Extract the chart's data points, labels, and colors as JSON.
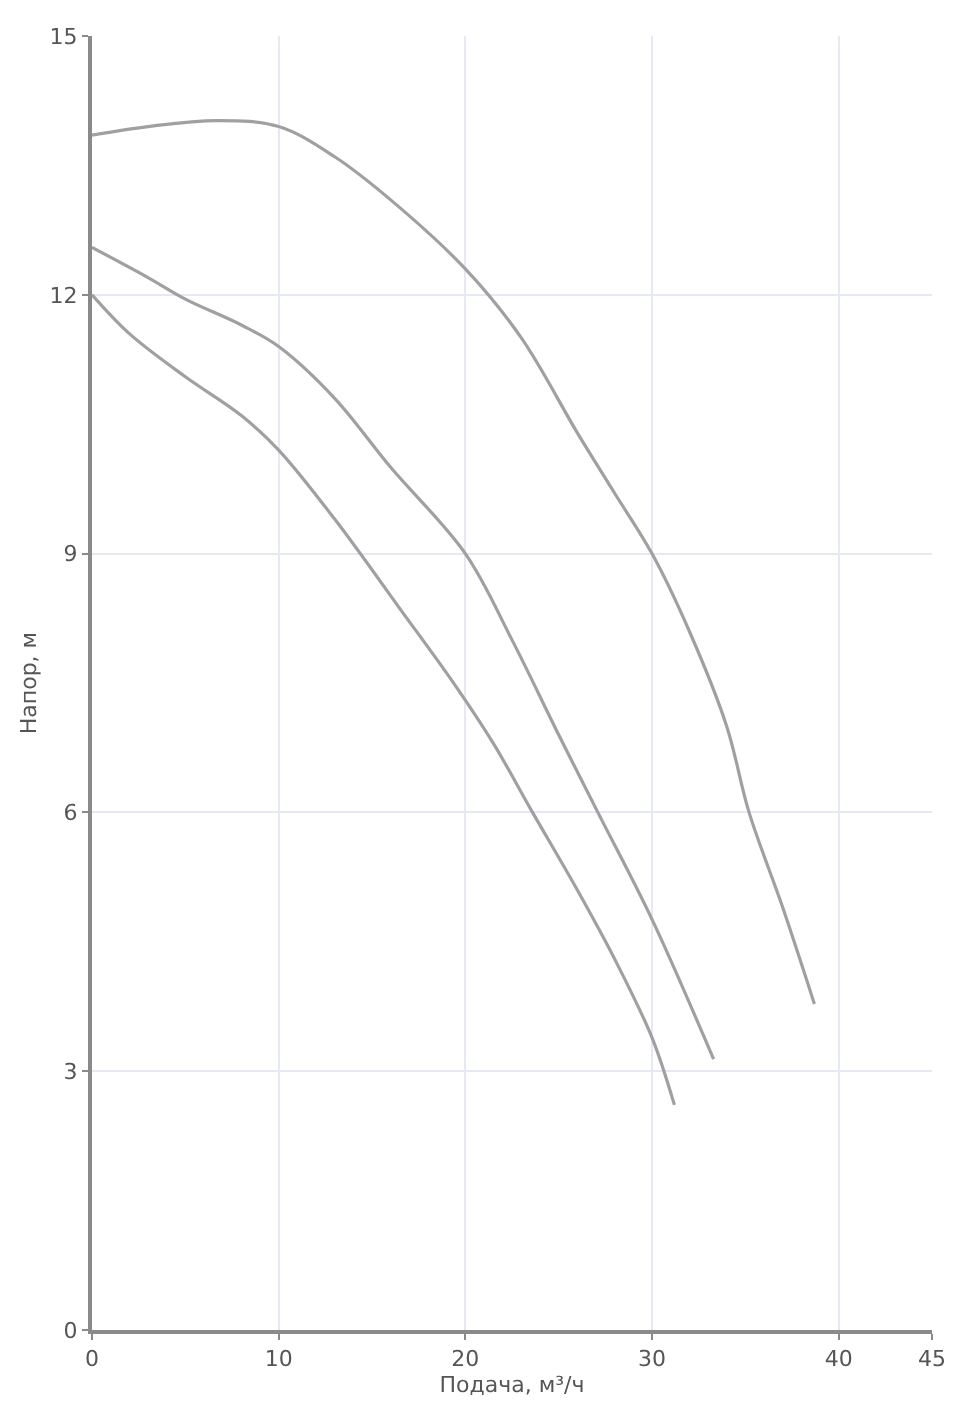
{
  "chart_data": {
    "type": "line",
    "xlabel": "Подача, м³/ч",
    "ylabel": "Напор, м",
    "xlim": [
      0,
      45
    ],
    "xticks": [
      0,
      10,
      20,
      30,
      40,
      45
    ],
    "ylim": [
      0,
      15
    ],
    "yticks": [
      0,
      3,
      6,
      9,
      12,
      15
    ],
    "grid": true,
    "line_style": "solid",
    "series": [
      {
        "color": "#a0a0a0",
        "x": [
          0,
          3,
          6.7,
          10,
          13,
          16,
          20,
          23,
          26,
          28,
          30,
          32,
          34,
          35.2,
          37,
          38.7
        ],
        "values": [
          13.85,
          13.95,
          14.02,
          13.95,
          13.6,
          13.1,
          12.3,
          11.5,
          10.4,
          9.7,
          9.0,
          8.1,
          7.0,
          6.0,
          4.9,
          3.78
        ]
      },
      {
        "color": "#a0a0a0",
        "x": [
          0,
          3,
          5,
          8,
          10,
          13,
          16,
          20,
          22.5,
          25,
          27.1,
          30,
          33.3
        ],
        "values": [
          12.55,
          12.2,
          11.95,
          11.65,
          11.4,
          10.8,
          10.0,
          9.0,
          8.0,
          6.9,
          6.0,
          4.76,
          3.14
        ]
      },
      {
        "color": "#a0a0a0",
        "x": [
          0,
          2,
          5,
          8,
          10,
          13,
          16.5,
          19.4,
          21.5,
          23.6,
          26,
          28,
          30,
          31.2
        ],
        "values": [
          12.0,
          11.55,
          11.05,
          10.6,
          10.2,
          9.4,
          8.36,
          7.49,
          6.8,
          6.0,
          5.1,
          4.3,
          3.39,
          2.61
        ]
      }
    ]
  }
}
